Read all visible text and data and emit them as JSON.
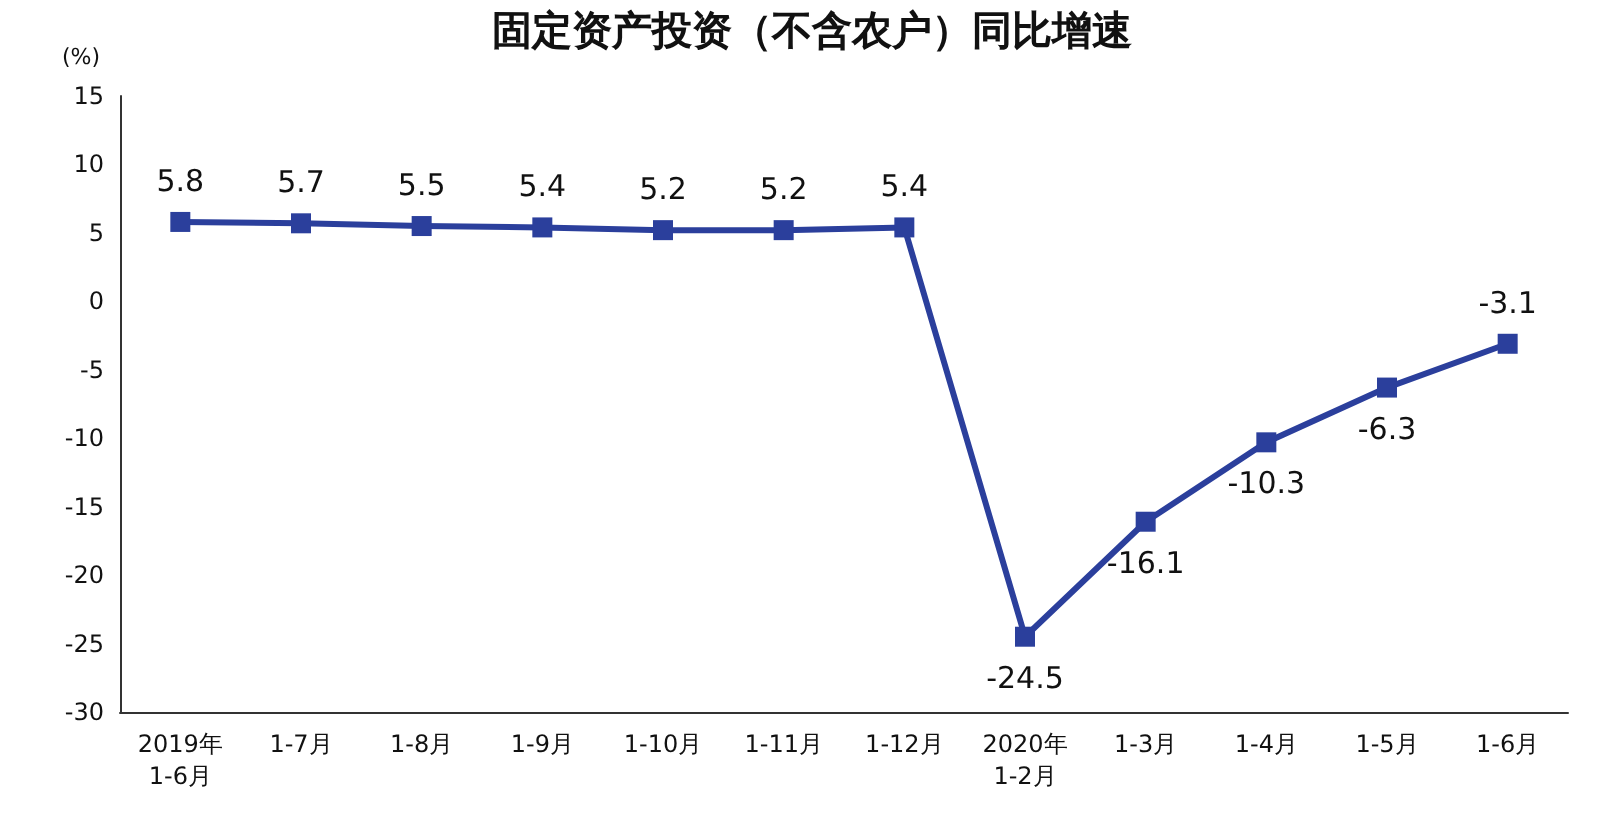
{
  "chart_data": {
    "type": "line",
    "title": "固定资产投资（不含农户）同比增速",
    "ylabel": "(%)",
    "categories": [
      "2019年\n1-6月",
      "1-7月",
      "1-8月",
      "1-9月",
      "1-10月",
      "1-11月",
      "1-12月",
      "2020年\n1-2月",
      "1-3月",
      "1-4月",
      "1-5月",
      "1-6月"
    ],
    "series": [
      {
        "color": "#2b3f9c",
        "values": [
          5.8,
          5.7,
          5.5,
          5.4,
          5.2,
          5.2,
          5.4,
          -24.5,
          -16.1,
          -10.3,
          -6.3,
          -3.1
        ]
      }
    ],
    "ylim": [
      -30,
      15
    ],
    "yticks": [
      -30,
      -25,
      -20,
      -15,
      -10,
      -5,
      0,
      5,
      10,
      15
    ],
    "grid": false,
    "marker": "square",
    "line_style": "solid",
    "data_labels": true
  }
}
